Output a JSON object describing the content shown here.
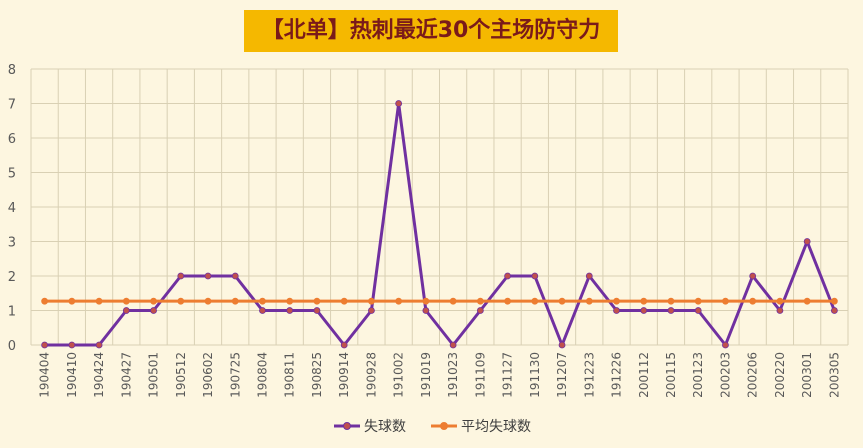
{
  "chart_data": {
    "type": "line",
    "title": "【北单】热刺最近30个主场防守力",
    "categories": [
      "190404",
      "190410",
      "190424",
      "190427",
      "190501",
      "190512",
      "190602",
      "190725",
      "190804",
      "190811",
      "190825",
      "190914",
      "190928",
      "191002",
      "191019",
      "191023",
      "191109",
      "191127",
      "191130",
      "191207",
      "191223",
      "191226",
      "200112",
      "200115",
      "200123",
      "200203",
      "200206",
      "200220",
      "200301",
      "200305"
    ],
    "series": [
      {
        "name": "失球数",
        "color": "#7030a0",
        "marker_color": "#c0504d",
        "values": [
          0,
          0,
          0,
          1,
          1,
          2,
          2,
          2,
          1,
          1,
          1,
          0,
          1,
          7,
          1,
          0,
          1,
          2,
          2,
          0,
          2,
          1,
          1,
          1,
          1,
          0,
          2,
          1,
          3,
          1
        ]
      },
      {
        "name": "平均失球数",
        "color": "#ed7d31",
        "marker_color": "#ed7d31",
        "values": [
          1.27,
          1.27,
          1.27,
          1.27,
          1.27,
          1.27,
          1.27,
          1.27,
          1.27,
          1.27,
          1.27,
          1.27,
          1.27,
          1.27,
          1.27,
          1.27,
          1.27,
          1.27,
          1.27,
          1.27,
          1.27,
          1.27,
          1.27,
          1.27,
          1.27,
          1.27,
          1.27,
          1.27,
          1.27,
          1.27
        ]
      }
    ],
    "ylim": [
      0,
      8
    ],
    "yticks": [
      0,
      1,
      2,
      3,
      4,
      5,
      6,
      7,
      8
    ],
    "grid": true,
    "legend": "bottom",
    "xlabel": "",
    "ylabel": ""
  },
  "colors": {
    "background": "#fdf6e0",
    "title_bg": "#f5b800",
    "title_text": "#7a1a1a",
    "grid": "#d9d0b4"
  }
}
